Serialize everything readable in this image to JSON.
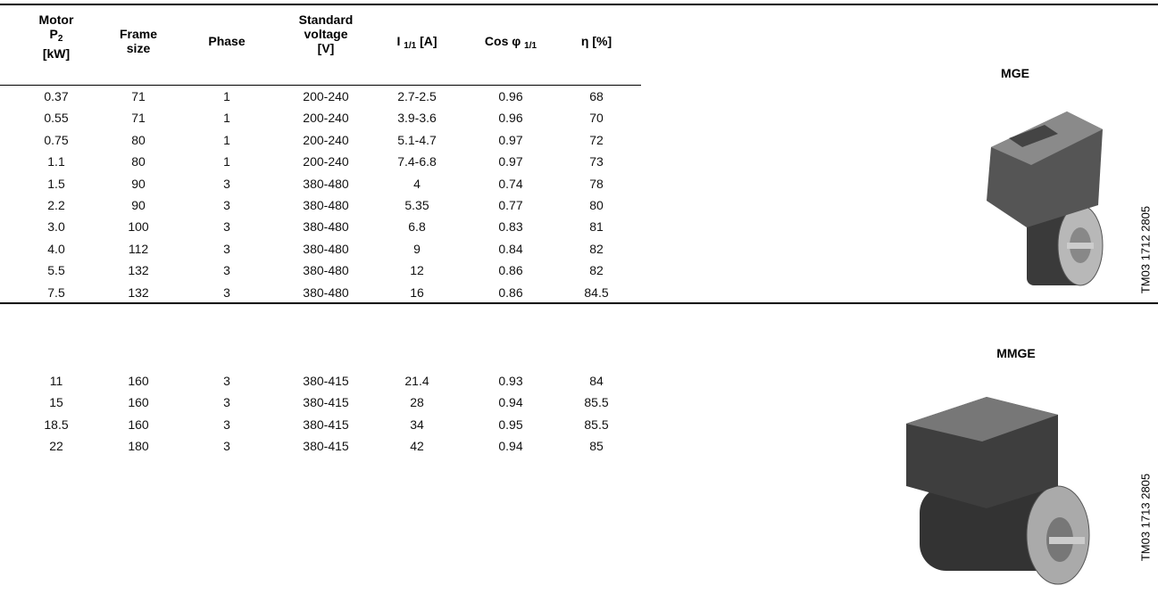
{
  "table": {
    "headers": [
      [
        "Motor",
        [
          "P",
          "2"
        ],
        "[kW]"
      ],
      [
        "Frame",
        "size"
      ],
      [
        "Phase"
      ],
      [
        "Standard",
        "voltage",
        "[V]"
      ],
      [
        [
          "I ",
          "1/1",
          " [A]"
        ]
      ],
      [
        [
          "Cos φ ",
          "1/1"
        ]
      ],
      [
        "η [%]"
      ]
    ],
    "groups": [
      {
        "rows": [
          [
            "0.37",
            "71",
            "1",
            "200-240",
            "2.7-2.5",
            "0.96",
            "68"
          ],
          [
            "0.55",
            "71",
            "1",
            "200-240",
            "3.9-3.6",
            "0.96",
            "70"
          ],
          [
            "0.75",
            "80",
            "1",
            "200-240",
            "5.1-4.7",
            "0.97",
            "72"
          ],
          [
            "1.1",
            "80",
            "1",
            "200-240",
            "7.4-6.8",
            "0.97",
            "73"
          ],
          [
            "1.5",
            "90",
            "3",
            "380-480",
            "4",
            "0.74",
            "78"
          ],
          [
            "2.2",
            "90",
            "3",
            "380-480",
            "5.35",
            "0.77",
            "80"
          ],
          [
            "3.0",
            "100",
            "3",
            "380-480",
            "6.8",
            "0.83",
            "81"
          ],
          [
            "4.0",
            "112",
            "3",
            "380-480",
            "9",
            "0.84",
            "82"
          ],
          [
            "5.5",
            "132",
            "3",
            "380-480",
            "12",
            "0.86",
            "82"
          ],
          [
            "7.5",
            "132",
            "3",
            "380-480",
            "16",
            "0.86",
            "84.5"
          ]
        ]
      },
      {
        "rows": [
          [
            "11",
            "160",
            "3",
            "380-415",
            "21.4",
            "0.93",
            "84"
          ],
          [
            "15",
            "160",
            "3",
            "380-415",
            "28",
            "0.94",
            "85.5"
          ],
          [
            "18.5",
            "160",
            "3",
            "380-415",
            "34",
            "0.95",
            "85.5"
          ],
          [
            "22",
            "180",
            "3",
            "380-415",
            "42",
            "0.94",
            "85"
          ]
        ]
      }
    ]
  },
  "products": [
    {
      "label": "MGE",
      "code": "TM03 1712 2805"
    },
    {
      "label": "MMGE",
      "code": "TM03 1713 2805"
    }
  ]
}
